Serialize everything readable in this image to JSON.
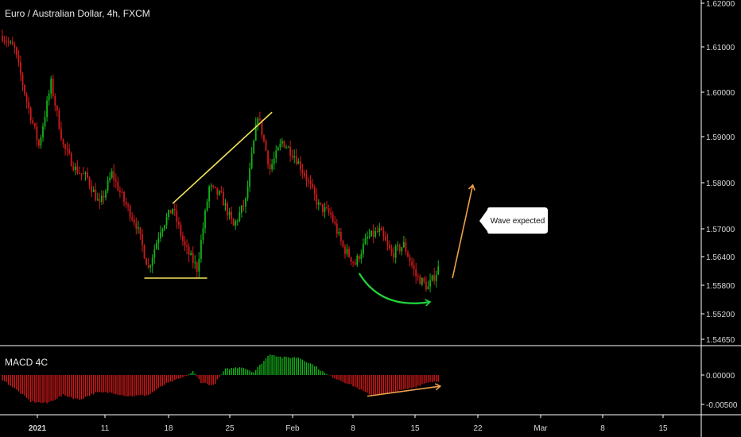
{
  "header": {
    "title": "Euro / Australian Dollar, 4h, FXCM"
  },
  "macd_panel": {
    "label": "MACD 4C"
  },
  "callout": {
    "text": "Wave expected"
  },
  "colors": {
    "up": "#14b31a",
    "down": "#d11a1a",
    "trend_line": "#f2e45a",
    "arrow_green": "#22d33a",
    "arrow_orange": "#f0a04a",
    "axis_line": "#ffffff",
    "background": "#000000"
  },
  "chart_data": [
    {
      "type": "candlestick",
      "title": "Euro / Australian Dollar, 4h, FXCM",
      "ylim": [
        1.5425,
        1.6205
      ],
      "y_ticks": [
        "1.62000",
        "1.61000",
        "1.60000",
        "1.59000",
        "1.58000",
        "1.57000",
        "1.56400",
        "1.55800",
        "1.55200",
        "1.54650"
      ],
      "x_ticks": [
        {
          "label": "2021",
          "bold": true
        },
        {
          "label": "11",
          "bold": false
        },
        {
          "label": "18",
          "bold": false
        },
        {
          "label": "25",
          "bold": false
        },
        {
          "label": "Feb",
          "bold": false
        },
        {
          "label": "8",
          "bold": false
        },
        {
          "label": "15",
          "bold": false
        },
        {
          "label": "22",
          "bold": false
        },
        {
          "label": "Mar",
          "bold": false
        },
        {
          "label": "8",
          "bold": false
        },
        {
          "label": "15",
          "bold": false
        }
      ],
      "price_path": [
        {
          "i": 0,
          "p": 1.6125
        },
        {
          "i": 6,
          "p": 1.6095
        },
        {
          "i": 12,
          "p": 1.598
        },
        {
          "i": 18,
          "p": 1.588
        },
        {
          "i": 24,
          "p": 1.602
        },
        {
          "i": 30,
          "p": 1.588
        },
        {
          "i": 36,
          "p": 1.583
        },
        {
          "i": 42,
          "p": 1.581
        },
        {
          "i": 48,
          "p": 1.575
        },
        {
          "i": 54,
          "p": 1.582
        },
        {
          "i": 60,
          "p": 1.576
        },
        {
          "i": 66,
          "p": 1.571
        },
        {
          "i": 72,
          "p": 1.5615
        },
        {
          "i": 78,
          "p": 1.57
        },
        {
          "i": 84,
          "p": 1.5745
        },
        {
          "i": 90,
          "p": 1.566
        },
        {
          "i": 96,
          "p": 1.5615
        },
        {
          "i": 102,
          "p": 1.579
        },
        {
          "i": 108,
          "p": 1.577
        },
        {
          "i": 114,
          "p": 1.5705
        },
        {
          "i": 120,
          "p": 1.576
        },
        {
          "i": 126,
          "p": 1.595
        },
        {
          "i": 132,
          "p": 1.583
        },
        {
          "i": 138,
          "p": 1.589
        },
        {
          "i": 144,
          "p": 1.586
        },
        {
          "i": 150,
          "p": 1.581
        },
        {
          "i": 156,
          "p": 1.575
        },
        {
          "i": 162,
          "p": 1.573
        },
        {
          "i": 168,
          "p": 1.566
        },
        {
          "i": 174,
          "p": 1.5625
        },
        {
          "i": 180,
          "p": 1.568
        },
        {
          "i": 186,
          "p": 1.5695
        },
        {
          "i": 192,
          "p": 1.5645
        },
        {
          "i": 198,
          "p": 1.5665
        },
        {
          "i": 204,
          "p": 1.56
        },
        {
          "i": 210,
          "p": 1.5575
        },
        {
          "i": 215,
          "p": 1.5615
        }
      ],
      "annotations": [
        {
          "type": "trend-line",
          "from": {
            "i": 70,
            "p": 1.5595
          },
          "to": {
            "i": 101,
            "p": 1.5595
          }
        },
        {
          "type": "trend-line",
          "from": {
            "i": 84,
            "p": 1.5755
          },
          "to": {
            "i": 133,
            "p": 1.5955
          }
        },
        {
          "type": "arrow",
          "style": "curved",
          "from": {
            "i": 176,
            "p": 1.5605
          },
          "to": {
            "i": 211,
            "p": 1.5545
          }
        },
        {
          "type": "arrow",
          "style": "straight",
          "from": {
            "i": 222,
            "p": 1.5595
          },
          "to": {
            "i": 232,
            "p": 1.5795
          }
        }
      ]
    },
    {
      "type": "bar",
      "title": "MACD 4C",
      "ylim": [
        -0.0064,
        0.0051
      ],
      "y_ticks": [
        "0.00000",
        "-0.00500"
      ],
      "hist_path": [
        {
          "i": 0,
          "v": -0.0008
        },
        {
          "i": 8,
          "v": -0.0028
        },
        {
          "i": 14,
          "v": -0.0045
        },
        {
          "i": 22,
          "v": -0.0048
        },
        {
          "i": 30,
          "v": -0.0034
        },
        {
          "i": 38,
          "v": -0.0042
        },
        {
          "i": 46,
          "v": -0.003
        },
        {
          "i": 54,
          "v": -0.003
        },
        {
          "i": 62,
          "v": -0.0036
        },
        {
          "i": 72,
          "v": -0.0034
        },
        {
          "i": 80,
          "v": -0.0016
        },
        {
          "i": 90,
          "v": -0.0003
        },
        {
          "i": 94,
          "v": 0.0006
        },
        {
          "i": 98,
          "v": -0.0012
        },
        {
          "i": 104,
          "v": -0.0018
        },
        {
          "i": 110,
          "v": 0.001
        },
        {
          "i": 118,
          "v": 0.0014
        },
        {
          "i": 124,
          "v": 0.0005
        },
        {
          "i": 132,
          "v": 0.0036
        },
        {
          "i": 138,
          "v": 0.003
        },
        {
          "i": 146,
          "v": 0.003
        },
        {
          "i": 154,
          "v": 0.0016
        },
        {
          "i": 160,
          "v": 0.0001
        },
        {
          "i": 166,
          "v": -0.0008
        },
        {
          "i": 174,
          "v": -0.002
        },
        {
          "i": 182,
          "v": -0.0035
        },
        {
          "i": 192,
          "v": -0.003
        },
        {
          "i": 202,
          "v": -0.0022
        },
        {
          "i": 210,
          "v": -0.0012
        },
        {
          "i": 215,
          "v": -0.001
        }
      ],
      "annotations": [
        {
          "type": "arrow",
          "style": "straight",
          "from": {
            "i": 180,
            "v": -0.0036
          },
          "to": {
            "i": 216,
            "v": -0.0019
          }
        }
      ]
    }
  ]
}
